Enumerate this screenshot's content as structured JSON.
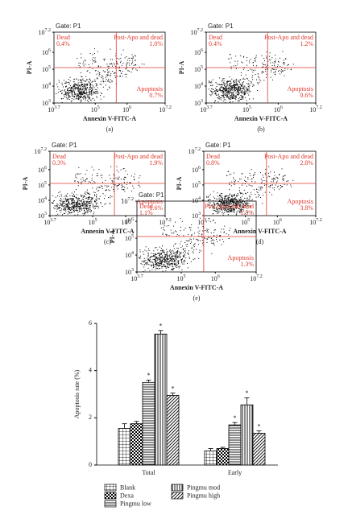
{
  "chart_data": [
    {
      "type": "flow",
      "title": "Gate: P1",
      "panel": "(a)",
      "xlabel": "Annexin V-FITC-A",
      "ylabel": "PI-A",
      "xscale": "log",
      "yscale": "log",
      "color": "#e03a2e",
      "xlim": [
        5011.87,
        15848931.92
      ],
      "ylim": [
        1000,
        15848931.92
      ],
      "xticks": [
        {
          "value": 5011.87,
          "label": "10",
          "exponent": "3.7"
        },
        {
          "value": 100000,
          "label": "10",
          "exponent": "5"
        },
        {
          "value": 1000000,
          "label": "10",
          "exponent": "6"
        },
        {
          "value": 15848931.92,
          "label": "10",
          "exponent": "7.2"
        }
      ],
      "yticks": [
        {
          "value": 1000,
          "label": "10",
          "exponent": "3"
        },
        {
          "value": 10000,
          "label": "10",
          "exponent": "4"
        },
        {
          "value": 100000,
          "label": "10",
          "exponent": "5"
        },
        {
          "value": 1000000,
          "label": "10",
          "exponent": "6"
        },
        {
          "value": 15848931.92,
          "label": "10",
          "exponent": "7.2"
        }
      ],
      "quadrants": {
        "names": [
          "Dead",
          "Post-Apo and dead",
          "Apoptosis"
        ],
        "values": [
          0.4,
          1.0,
          0.7
        ],
        "value_labels": [
          "0.4%",
          "1.0%",
          "0.7%"
        ]
      }
    },
    {
      "type": "flow",
      "title": "Gate: P1",
      "panel": "(b)",
      "xlabel": "Annexin V-FITC-A",
      "ylabel": "PI-A",
      "xscale": "log",
      "yscale": "log",
      "color": "#e03a2e",
      "xlim": [
        5011.87,
        15848931.92
      ],
      "ylim": [
        1000,
        15848931.92
      ],
      "xticks": [
        {
          "value": 5011.87,
          "label": "10",
          "exponent": "3.7"
        },
        {
          "value": 100000,
          "label": "10",
          "exponent": "5"
        },
        {
          "value": 1000000,
          "label": "10",
          "exponent": "6"
        },
        {
          "value": 15848931.92,
          "label": "10",
          "exponent": "7.2"
        }
      ],
      "yticks": [
        {
          "value": 1000,
          "label": "10",
          "exponent": "3"
        },
        {
          "value": 10000,
          "label": "10",
          "exponent": "4"
        },
        {
          "value": 100000,
          "label": "10",
          "exponent": "5"
        },
        {
          "value": 1000000,
          "label": "10",
          "exponent": "6"
        },
        {
          "value": 15848931.92,
          "label": "10",
          "exponent": "7.2"
        }
      ],
      "quadrants": {
        "names": [
          "Dead",
          "Post-Apo and dead",
          "Apoptosis"
        ],
        "values": [
          0.4,
          1.2,
          0.6
        ],
        "value_labels": [
          "0.4%",
          "1.2%",
          "0.6%"
        ]
      }
    },
    {
      "type": "flow",
      "title": "Gate: P1",
      "panel": "(c)",
      "xlabel": "Annexin V-FITC-A",
      "ylabel": "PI-A",
      "xscale": "log",
      "yscale": "log",
      "color": "#e03a2e",
      "xlim": [
        5011.87,
        15848931.92
      ],
      "ylim": [
        1000,
        15848931.92
      ],
      "xticks": [
        {
          "value": 5011.87,
          "label": "10",
          "exponent": "3.7"
        },
        {
          "value": 100000,
          "label": "10",
          "exponent": "5"
        },
        {
          "value": 1000000,
          "label": "10",
          "exponent": "6"
        },
        {
          "value": 15848931.92,
          "label": "10",
          "exponent": "7.2"
        }
      ],
      "yticks": [
        {
          "value": 1000,
          "label": "10",
          "exponent": "3"
        },
        {
          "value": 10000,
          "label": "10",
          "exponent": "4"
        },
        {
          "value": 100000,
          "label": "10",
          "exponent": "5"
        },
        {
          "value": 1000000,
          "label": "10",
          "exponent": "6"
        },
        {
          "value": 15848931.92,
          "label": "10",
          "exponent": "7.2"
        }
      ],
      "quadrants": {
        "names": [
          "Dead",
          "Post-Apo and dead",
          "Apoptosis"
        ],
        "values": [
          0.3,
          1.9,
          1.6
        ],
        "value_labels": [
          "0.3%",
          "1.9%",
          "1.6%"
        ]
      }
    },
    {
      "type": "flow",
      "title": "Gate: P1",
      "panel": "(d)",
      "xlabel": "Annexin V-FITC-A",
      "ylabel": "PI-A",
      "xscale": "log",
      "yscale": "log",
      "color": "#e03a2e",
      "xlim": [
        5011.87,
        15848931.92
      ],
      "ylim": [
        1000,
        15848931.92
      ],
      "xticks": [
        {
          "value": 5011.87,
          "label": "10",
          "exponent": "3.7"
        },
        {
          "value": 100000,
          "label": "10",
          "exponent": "5"
        },
        {
          "value": 1000000,
          "label": "10",
          "exponent": "6"
        },
        {
          "value": 15848931.92,
          "label": "10",
          "exponent": "7.2"
        }
      ],
      "yticks": [
        {
          "value": 1000,
          "label": "10",
          "exponent": "3"
        },
        {
          "value": 10000,
          "label": "10",
          "exponent": "4"
        },
        {
          "value": 100000,
          "label": "10",
          "exponent": "5"
        },
        {
          "value": 1000000,
          "label": "10",
          "exponent": "6"
        },
        {
          "value": 15848931.92,
          "label": "10",
          "exponent": "7.2"
        }
      ],
      "quadrants": {
        "names": [
          "Dead",
          "Post-Apo and dead",
          "Apoptosis"
        ],
        "values": [
          0.8,
          2.8,
          3.8
        ],
        "value_labels": [
          "0.8%",
          "2.8%",
          "3.8%"
        ]
      }
    },
    {
      "type": "flow",
      "title": "Gate: P1",
      "panel": "(e)",
      "xlabel": "Annexin V-FITC-A",
      "ylabel": "PI-A",
      "xscale": "log",
      "yscale": "log",
      "color": "#e03a2e",
      "xlim": [
        5011.87,
        15848931.92
      ],
      "ylim": [
        1000,
        15848931.92
      ],
      "xticks": [
        {
          "value": 5011.87,
          "label": "10",
          "exponent": "3.7"
        },
        {
          "value": 100000,
          "label": "10",
          "exponent": "5"
        },
        {
          "value": 1000000,
          "label": "10",
          "exponent": "6"
        },
        {
          "value": 15848931.92,
          "label": "10",
          "exponent": "7.2"
        }
      ],
      "yticks": [
        {
          "value": 1000,
          "label": "10",
          "exponent": "3"
        },
        {
          "value": 10000,
          "label": "10",
          "exponent": "4"
        },
        {
          "value": 100000,
          "label": "10",
          "exponent": "5"
        },
        {
          "value": 1000000,
          "label": "10",
          "exponent": "6"
        },
        {
          "value": 15848931.92,
          "label": "10",
          "exponent": "7.2"
        }
      ],
      "quadrants": {
        "names": [
          "Dead",
          "Post-Apo and dead",
          "Apoptosis"
        ],
        "values": [
          1.1,
          1.5,
          1.3
        ],
        "value_labels": [
          "1.1%",
          "1.5%",
          "1.3%"
        ]
      }
    },
    {
      "type": "bar",
      "ylabel": "Apoptosis rate (%)",
      "categories": [
        "Total",
        "Early"
      ],
      "ylim": [
        0,
        6
      ],
      "yticks": [
        0,
        2,
        4,
        6
      ],
      "series": [
        {
          "name": "Blank",
          "pattern": "grid",
          "values": [
            1.55,
            0.6
          ],
          "errors": [
            0.2,
            0.1
          ]
        },
        {
          "name": "Dexa",
          "pattern": "checker",
          "values": [
            1.75,
            0.7
          ],
          "errors": [
            0.1,
            0.05
          ]
        },
        {
          "name": "Pingmu low",
          "pattern": "horizontal",
          "values": [
            3.5,
            1.7
          ],
          "errors": [
            0.1,
            0.1
          ],
          "significance": "*"
        },
        {
          "name": "Pingmu mod",
          "pattern": "vertical",
          "values": [
            5.55,
            2.55
          ],
          "errors": [
            0.15,
            0.3
          ],
          "significance": "*"
        },
        {
          "name": "Pingmu high",
          "pattern": "diagonal",
          "values": [
            2.95,
            1.35
          ],
          "errors": [
            0.1,
            0.1
          ],
          "significance": "*"
        }
      ]
    }
  ]
}
